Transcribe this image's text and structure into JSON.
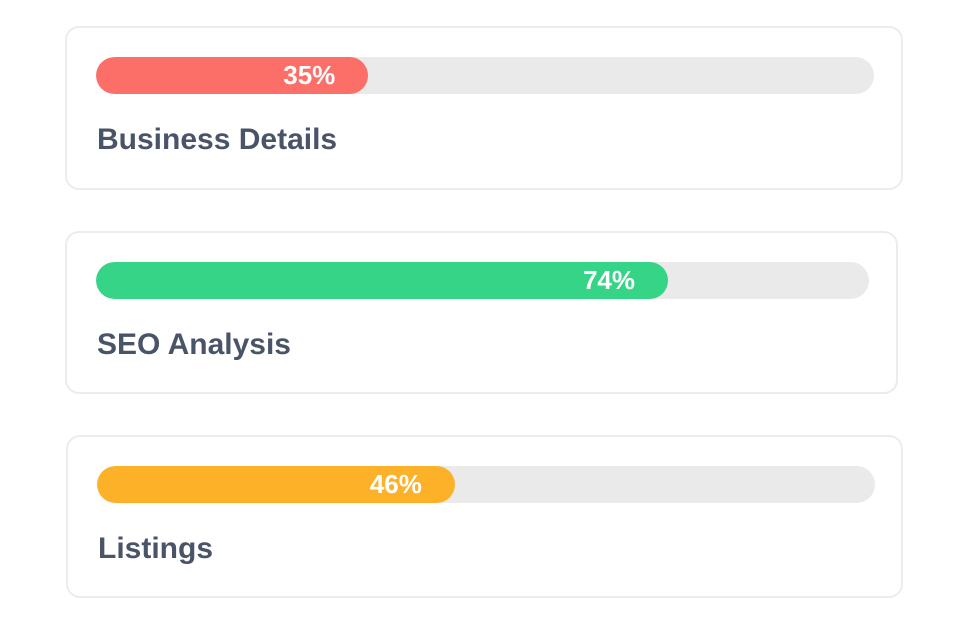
{
  "progress_cards": [
    {
      "label": "Business Details",
      "percent_text": "35%",
      "value": 35,
      "color": "#fb6f68"
    },
    {
      "label": "SEO Analysis",
      "percent_text": "74%",
      "value": 74,
      "color": "#35d486"
    },
    {
      "label": "Listings",
      "percent_text": "46%",
      "value": 46,
      "color": "#fdb129"
    }
  ],
  "track_color": "#eaeaea",
  "title_color": "#4a5468"
}
